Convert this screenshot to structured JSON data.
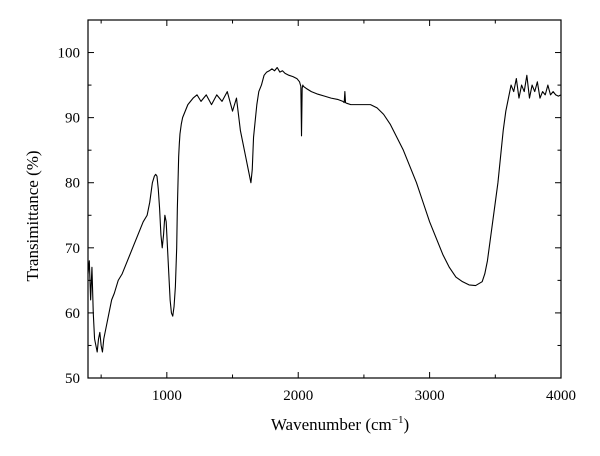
{
  "chart_data": {
    "type": "line",
    "xlabel": "Wavenumber (cm",
    "xlabel_sup": "−1",
    "xlabel_close": ")",
    "ylabel": "Transimittance (%)",
    "xlim": [
      400,
      4000
    ],
    "ylim": [
      50,
      105
    ],
    "xticks": [
      1000,
      2000,
      3000,
      4000
    ],
    "yticks": [
      50,
      60,
      70,
      80,
      90,
      100
    ],
    "grid": false,
    "legend": "none",
    "line_color": "#000000",
    "series": [
      {
        "x": [
          400,
          410,
          420,
          430,
          440,
          450,
          460,
          470,
          480,
          490,
          500,
          510,
          520,
          540,
          560,
          580,
          600,
          630,
          660,
          700,
          740,
          780,
          820,
          850,
          870,
          890,
          905,
          915,
          925,
          935,
          945,
          955,
          965,
          975,
          985,
          995,
          1005,
          1015,
          1025,
          1035,
          1045,
          1055,
          1065,
          1075,
          1080,
          1085,
          1090,
          1095,
          1100,
          1110,
          1120,
          1140,
          1160,
          1180,
          1200,
          1230,
          1260,
          1300,
          1340,
          1380,
          1420,
          1460,
          1500,
          1530,
          1560,
          1580,
          1600,
          1620,
          1640,
          1650,
          1660,
          1670,
          1685,
          1700,
          1720,
          1740,
          1760,
          1780,
          1800,
          1820,
          1840,
          1860,
          1880,
          1900,
          1930,
          1960,
          1990,
          2010,
          2020,
          2025,
          2030,
          2035,
          2040,
          2060,
          2100,
          2150,
          2200,
          2250,
          2300,
          2340,
          2350,
          2355,
          2360,
          2370,
          2400,
          2450,
          2500,
          2550,
          2600,
          2650,
          2700,
          2750,
          2800,
          2850,
          2900,
          2950,
          3000,
          3050,
          3100,
          3150,
          3200,
          3250,
          3300,
          3350,
          3400,
          3420,
          3440,
          3460,
          3480,
          3500,
          3520,
          3540,
          3560,
          3580,
          3600,
          3620,
          3640,
          3660,
          3680,
          3700,
          3720,
          3740,
          3760,
          3780,
          3800,
          3820,
          3840,
          3860,
          3880,
          3900,
          3920,
          3940,
          3960,
          3980,
          4000
        ],
        "y": [
          66,
          68,
          62,
          67,
          60,
          56,
          55,
          54,
          56,
          57,
          55,
          54,
          56,
          58,
          60,
          62,
          63,
          65,
          66,
          68,
          70,
          72,
          74,
          75,
          77,
          80,
          81,
          81.3,
          81,
          79,
          76,
          72,
          70,
          72,
          75,
          74,
          70,
          66,
          62,
          60,
          59.5,
          61,
          64,
          70,
          76,
          80,
          84,
          86,
          87.5,
          89,
          90,
          91,
          92,
          92.5,
          93,
          93.5,
          92.5,
          93.5,
          92,
          93.5,
          92.5,
          94,
          91,
          93,
          88,
          86,
          84,
          82,
          80,
          82,
          87,
          89,
          92,
          94,
          95,
          96.5,
          97,
          97.2,
          97.5,
          97.2,
          97.7,
          97,
          97.2,
          96.8,
          96.5,
          96.3,
          96,
          95.5,
          94.8,
          87.2,
          94.5,
          95,
          94.8,
          94.5,
          94,
          93.6,
          93.3,
          93,
          92.8,
          92.5,
          92.3,
          94,
          92.3,
          92.2,
          92,
          92,
          92,
          92,
          91.5,
          90.5,
          89,
          87,
          85,
          82.5,
          80,
          77,
          74,
          71.5,
          69,
          67,
          65.5,
          64.8,
          64.3,
          64.2,
          64.8,
          66,
          68,
          71,
          74,
          77,
          80,
          84,
          88,
          91,
          93,
          95,
          94,
          96,
          93,
          95,
          94,
          96.5,
          93,
          95,
          94,
          95.5,
          93,
          94,
          93.5,
          95,
          93.5,
          94,
          93.5,
          93.3,
          93.5
        ]
      }
    ]
  }
}
